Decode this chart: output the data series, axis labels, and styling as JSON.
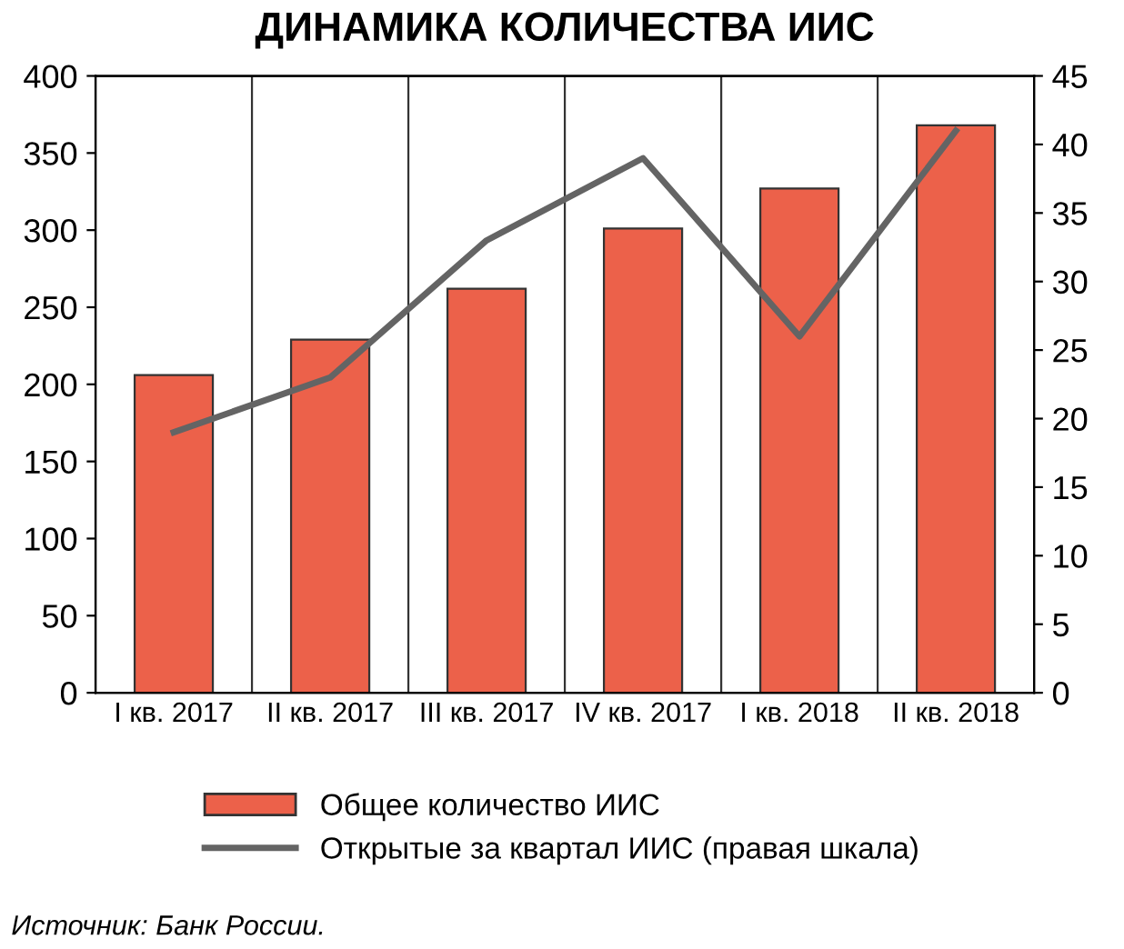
{
  "chart_data": {
    "type": "bar",
    "title": "ДИНАМИКА КОЛИЧЕСТВА ИИС",
    "categories": [
      "I кв. 2017",
      "II кв. 2017",
      "III кв. 2017",
      "IV кв. 2017",
      "I кв. 2018",
      "II кв. 2018"
    ],
    "series": [
      {
        "name": "Общее количество ИИС",
        "color": "#ec614a",
        "values": [
          206,
          229,
          262,
          301,
          327,
          368
        ]
      },
      {
        "name": "Открытые за квартал ИИС (правая шкала)",
        "type": "line",
        "axis": "y2",
        "color": "#646464",
        "values": [
          19,
          23,
          33,
          39,
          26,
          41
        ]
      }
    ],
    "ylim": [
      0,
      400
    ],
    "yticks": [
      0,
      50,
      100,
      150,
      200,
      250,
      300,
      350,
      400
    ],
    "y2lim": [
      0,
      45
    ],
    "y2ticks": [
      0,
      5,
      10,
      15,
      20,
      25,
      30,
      35,
      40,
      45
    ],
    "grid": "x",
    "legend": "bottom",
    "marker": "none",
    "line_style": "solid",
    "annotations": [
      "Источник: Банк России."
    ]
  }
}
